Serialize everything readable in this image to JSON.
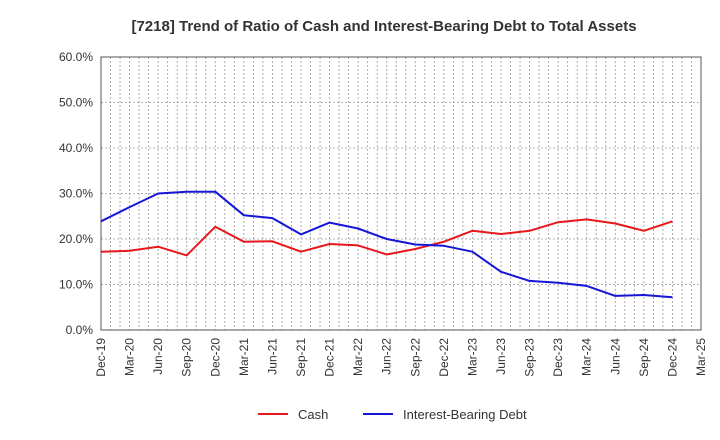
{
  "chart_data": {
    "type": "line",
    "title": "[7218]  Trend of Ratio of Cash and Interest-Bearing Debt to Total Assets",
    "xlabel": "",
    "ylabel": "",
    "ylim": [
      0,
      60
    ],
    "y_ticks": [
      "0.0%",
      "10.0%",
      "20.0%",
      "30.0%",
      "40.0%",
      "50.0%",
      "60.0%"
    ],
    "x": [
      "Dec-19",
      "Mar-20",
      "Jun-20",
      "Sep-20",
      "Dec-20",
      "Mar-21",
      "Jun-21",
      "Sep-21",
      "Dec-21",
      "Mar-22",
      "Jun-22",
      "Sep-22",
      "Dec-22",
      "Mar-23",
      "Jun-23",
      "Sep-23",
      "Dec-23",
      "Mar-24",
      "Jun-24",
      "Sep-24",
      "Dec-24",
      "Mar-25"
    ],
    "grid": true,
    "legend_position": "bottom",
    "series": [
      {
        "name": "Cash",
        "color": "#e8171c",
        "values": [
          17.2,
          17.4,
          18.3,
          16.4,
          22.7,
          19.4,
          19.5,
          17.2,
          18.9,
          18.6,
          16.6,
          17.8,
          19.4,
          21.8,
          21.1,
          21.8,
          23.7,
          24.3,
          23.4,
          21.8,
          23.9,
          null
        ]
      },
      {
        "name": "Interest-Bearing Debt",
        "color": "#1616d8",
        "values": [
          23.9,
          27.0,
          30.0,
          30.4,
          30.4,
          25.2,
          24.6,
          21.0,
          23.6,
          22.3,
          20.0,
          18.8,
          18.5,
          17.2,
          12.8,
          10.8,
          10.4,
          9.7,
          7.5,
          7.7,
          7.2,
          null
        ]
      }
    ]
  }
}
